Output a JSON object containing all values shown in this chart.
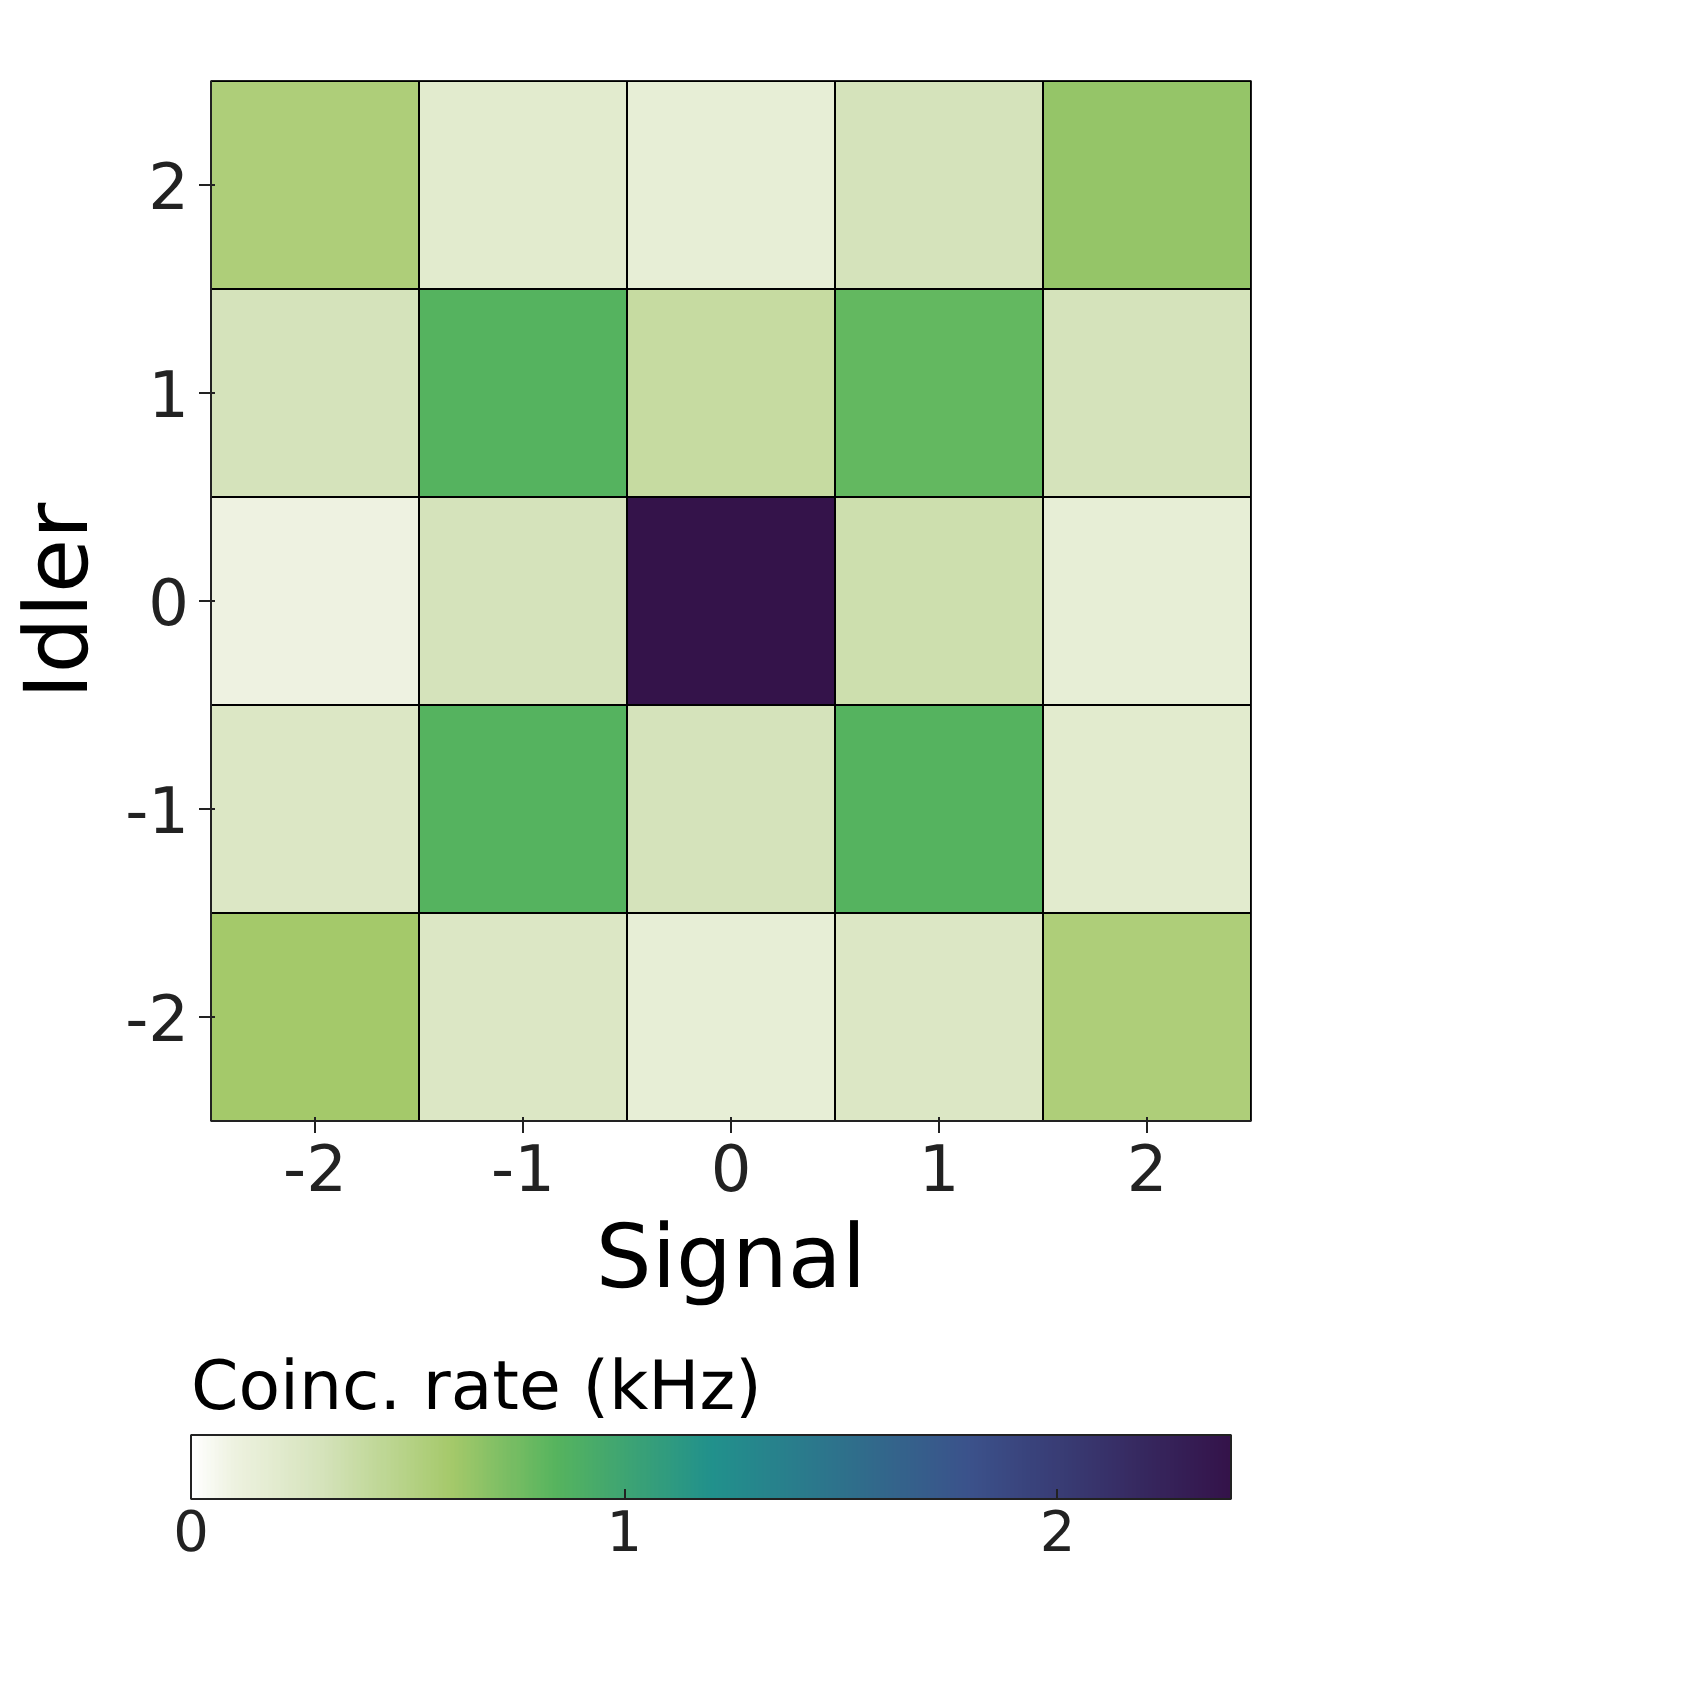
{
  "chart_data": {
    "type": "heatmap",
    "xlabel": "Signal",
    "ylabel": "Idler",
    "clabel": "Coinc. rate (kHz)",
    "categories": [
      "-2",
      "-1",
      "0",
      "1",
      "2"
    ],
    "y_categories": [
      "2",
      "1",
      "0",
      "-1",
      "-2"
    ],
    "cells": [
      [
        0.55,
        0.2,
        0.15,
        0.3,
        0.65
      ],
      [
        0.3,
        0.85,
        0.4,
        0.8,
        0.3
      ],
      [
        0.1,
        0.3,
        2.4,
        0.35,
        0.15
      ],
      [
        0.25,
        0.85,
        0.3,
        0.85,
        0.2
      ],
      [
        0.6,
        0.25,
        0.15,
        0.25,
        0.55
      ]
    ],
    "clim": [
      0,
      2.4
    ],
    "cticks": [
      0,
      1,
      2
    ]
  }
}
